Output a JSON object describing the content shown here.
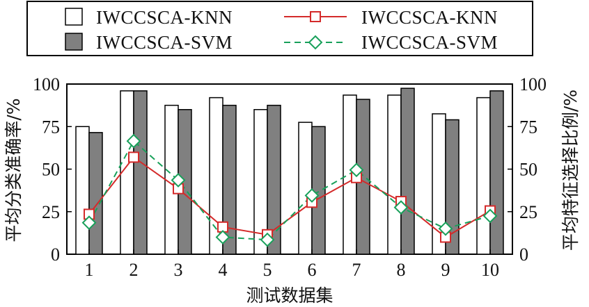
{
  "chart_data": {
    "type": "bar+line",
    "categories": [
      "1",
      "2",
      "3",
      "4",
      "5",
      "6",
      "7",
      "8",
      "9",
      "10"
    ],
    "bar_series": [
      {
        "name": "IWCCSCA-KNN",
        "fill": "#ffffff",
        "values": [
          75,
          96,
          87.5,
          92,
          85,
          77.5,
          93.5,
          93.5,
          82.5,
          92
        ]
      },
      {
        "name": "IWCCSCA-SVM",
        "fill": "#808080",
        "values": [
          71.5,
          96,
          85,
          87.5,
          87.5,
          75,
          91,
          97.5,
          79,
          96
        ]
      }
    ],
    "line_series": [
      {
        "name": "IWCCSCA-KNN",
        "color": "#d42a2a",
        "marker": "square",
        "dash": "solid",
        "values": [
          23.5,
          57,
          38.5,
          16,
          11.5,
          30.5,
          45,
          31,
          10,
          25.5
        ]
      },
      {
        "name": "IWCCSCA-SVM",
        "color": "#18a05a",
        "marker": "diamond",
        "dash": "dashed",
        "values": [
          18.5,
          66.5,
          43.5,
          10,
          8.5,
          34.5,
          49.5,
          27.5,
          15,
          22.5
        ]
      }
    ],
    "xlabel": "测试数据集",
    "ylabel_left": "平均分类准确率/%",
    "ylabel_right": "平均特征选择比例/%",
    "ylim": [
      0,
      100
    ],
    "yticks": [
      "0",
      "25",
      "50",
      "75",
      "100"
    ],
    "legend_position": "top",
    "grid": false
  }
}
